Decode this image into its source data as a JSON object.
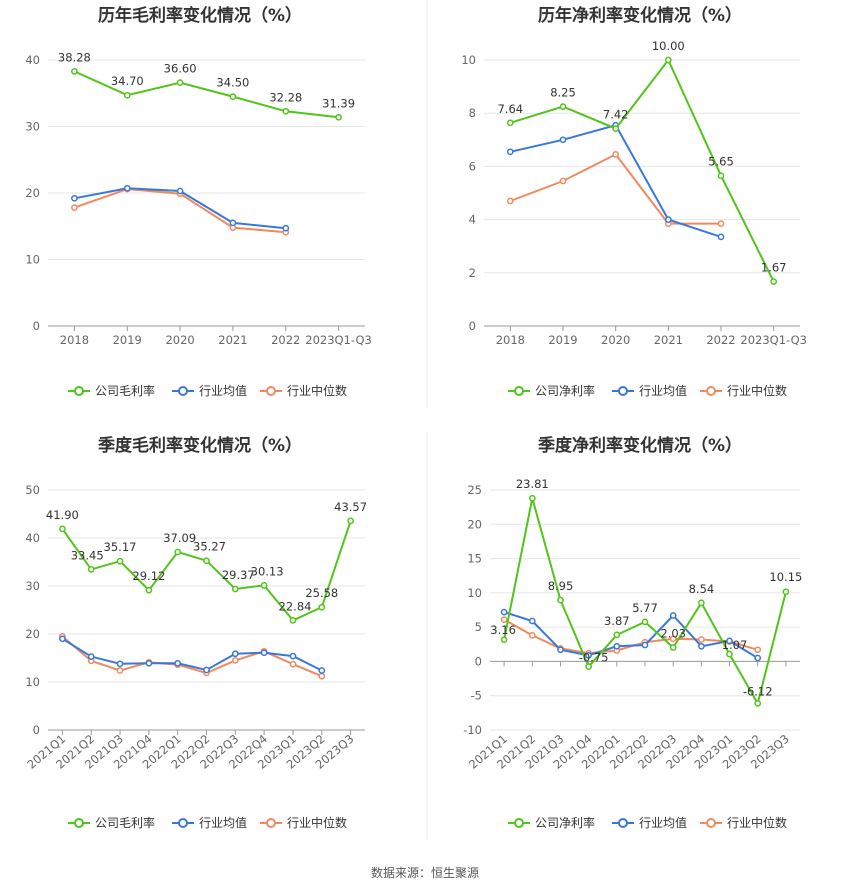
{
  "source": "数据来源：恒生聚源",
  "series_names": {
    "company_gross": "公司毛利率",
    "company_net": "公司净利率",
    "industry_avg": "行业均值",
    "industry_median": "行业中位数"
  },
  "colors": {
    "company": "#52c41a",
    "avg": "#3a78d8",
    "median": "#f08a5d",
    "grid": "#e6e6e6",
    "axis": "#999999"
  },
  "chart_data": [
    {
      "id": "annual-gross",
      "type": "line",
      "title": "历年毛利率变化情况（%）",
      "categories": [
        "2018",
        "2019",
        "2020",
        "2021",
        "2022",
        "2023Q1-Q3"
      ],
      "ylim": [
        0,
        40
      ],
      "yticks": [
        0,
        10,
        20,
        30,
        40
      ],
      "rotate_labels": false,
      "series": [
        {
          "key": "company",
          "name": "公司毛利率",
          "values": [
            38.28,
            34.7,
            36.6,
            34.5,
            32.28,
            31.39
          ],
          "labels": [
            "38.28",
            "34.70",
            "36.60",
            "34.50",
            "32.28",
            "31.39"
          ]
        },
        {
          "key": "avg",
          "name": "行业均值",
          "values": [
            19.2,
            20.7,
            20.3,
            15.5,
            14.7,
            null
          ]
        },
        {
          "key": "median",
          "name": "行业中位数",
          "values": [
            17.8,
            20.6,
            19.9,
            14.8,
            14.1,
            null
          ]
        }
      ]
    },
    {
      "id": "annual-net",
      "type": "line",
      "title": "历年净利率变化情况（%）",
      "categories": [
        "2018",
        "2019",
        "2020",
        "2021",
        "2022",
        "2023Q1-Q3"
      ],
      "ylim": [
        0,
        10
      ],
      "yticks": [
        0,
        2,
        4,
        6,
        8,
        10
      ],
      "rotate_labels": false,
      "series": [
        {
          "key": "company",
          "name": "公司净利率",
          "values": [
            7.64,
            8.25,
            7.42,
            10.0,
            5.65,
            1.67
          ],
          "labels": [
            "7.64",
            "8.25",
            "7.42",
            "10.00",
            "5.65",
            "1.67"
          ]
        },
        {
          "key": "avg",
          "name": "行业均值",
          "values": [
            6.55,
            7.0,
            7.55,
            4.0,
            3.35,
            null
          ]
        },
        {
          "key": "median",
          "name": "行业中位数",
          "values": [
            4.7,
            5.45,
            6.45,
            3.85,
            3.85,
            null
          ]
        }
      ]
    },
    {
      "id": "quarterly-gross",
      "type": "line",
      "title": "季度毛利率变化情况（%）",
      "categories": [
        "2021Q1",
        "2021Q2",
        "2021Q3",
        "2021Q4",
        "2022Q1",
        "2022Q2",
        "2022Q3",
        "2022Q4",
        "2023Q1",
        "2023Q2",
        "2023Q3"
      ],
      "ylim": [
        0,
        50
      ],
      "yticks": [
        0,
        10,
        20,
        30,
        40,
        50
      ],
      "rotate_labels": true,
      "series": [
        {
          "key": "company",
          "name": "公司毛利率",
          "values": [
            41.9,
            33.45,
            35.17,
            29.12,
            37.09,
            35.27,
            29.37,
            30.13,
            22.84,
            25.58,
            43.57
          ],
          "labels": [
            "41.90",
            "33.45",
            "35.17",
            "29.12",
            "37.09",
            "35.27",
            "29.37",
            "30.13",
            "22.84",
            "25.58",
            "43.57"
          ]
        },
        {
          "key": "avg",
          "name": "行业均值",
          "values": [
            19.0,
            15.3,
            13.8,
            13.9,
            13.9,
            12.5,
            15.9,
            16.1,
            15.4,
            12.4,
            null
          ]
        },
        {
          "key": "median",
          "name": "行业中位数",
          "values": [
            19.5,
            14.4,
            12.4,
            14.1,
            13.6,
            11.9,
            14.5,
            16.4,
            13.7,
            11.2,
            null
          ]
        }
      ]
    },
    {
      "id": "quarterly-net",
      "type": "line",
      "title": "季度净利率变化情况（%）",
      "categories": [
        "2021Q1",
        "2021Q2",
        "2021Q3",
        "2021Q4",
        "2022Q1",
        "2022Q2",
        "2022Q3",
        "2022Q4",
        "2023Q1",
        "2023Q2",
        "2023Q3"
      ],
      "ylim": [
        -10,
        25
      ],
      "yticks": [
        -10,
        -5,
        0,
        5,
        10,
        15,
        20,
        25
      ],
      "rotate_labels": true,
      "series": [
        {
          "key": "company",
          "name": "公司净利率",
          "values": [
            3.16,
            23.81,
            8.95,
            -0.75,
            3.87,
            5.77,
            2.03,
            8.54,
            1.07,
            -6.12,
            10.15
          ],
          "labels": [
            "3.16",
            "23.81",
            "8.95",
            "-0.75",
            "3.87",
            "5.77",
            "2.03",
            "8.54",
            "1.07",
            "-6.12",
            "10.15"
          ]
        },
        {
          "key": "avg",
          "name": "行业均值",
          "values": [
            7.2,
            5.9,
            1.7,
            0.9,
            2.2,
            2.4,
            6.7,
            2.2,
            3.0,
            0.5,
            null
          ]
        },
        {
          "key": "median",
          "name": "行业中位数",
          "values": [
            6.1,
            3.8,
            1.9,
            1.2,
            1.6,
            2.8,
            3.3,
            3.2,
            2.9,
            1.7,
            null
          ]
        }
      ]
    }
  ]
}
